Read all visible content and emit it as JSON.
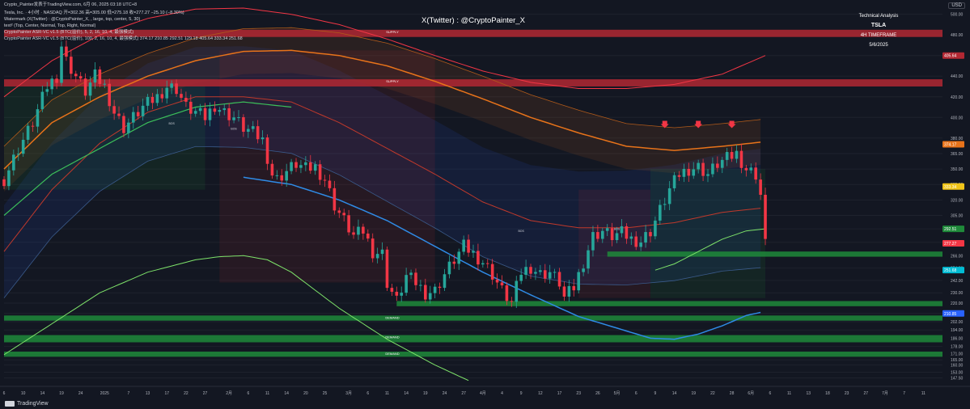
{
  "header": {
    "line1": "Crypto_Painter发表于TradingView.com, 6月 06, 2025 03:18 UTC+8",
    "line2": "Tesla, Inc. · 4小时 · NASDAQ  开=302.36  高=305.00  低=275.18  收=277.27  −25.10 (−8.30%)",
    "line3": "Watermark (X(Twitter) : @CryptoPainter_X, , large, top, center, 5, 30)",
    "line4": "text² (Top, Center, Normal, Top, Right, Normal)",
    "line5": "CryptoPainter ASR-VC v1.5 (BTC(溢价), 5, 2, 16, 10, 4, 最强模式)",
    "line6": "CryptoPainter ASR-VC v1.5 (BTC(溢价), 100, 2, 16, 10, 4, 最强模式)  374.17  210.85  292.51  129.18  405.64  333.34  251.68"
  },
  "watermark": "X(Twitter) : @CryptoPainter_X",
  "top_right": {
    "l1": "Technical Analysis",
    "l2": "TSLA",
    "l3": "4H TIMEFRAME",
    "l4": "5/6/2025"
  },
  "currency": "USD",
  "brand": "TradingView",
  "chart_data": {
    "type": "candlestick",
    "ylim": [
      144,
      506
    ],
    "y_ticks": [
      147.5,
      153.0,
      160.0,
      165.0,
      171.0,
      178.0,
      186.0,
      194.0,
      202.0,
      210.0,
      220.0,
      230.0,
      242.0,
      254.0,
      266.0,
      279.0,
      292.0,
      305.0,
      320.0,
      335.0,
      350.0,
      365.0,
      380.0,
      400.0,
      420.0,
      440.0,
      460.0,
      480.0,
      500.0
    ],
    "x_ticks": [
      {
        "i": 0,
        "label": "6"
      },
      {
        "i": 4,
        "label": "10"
      },
      {
        "i": 8,
        "label": "14"
      },
      {
        "i": 12,
        "label": "19"
      },
      {
        "i": 16,
        "label": "24"
      },
      {
        "i": 21,
        "label": "2025"
      },
      {
        "i": 26,
        "label": "7"
      },
      {
        "i": 30,
        "label": "13"
      },
      {
        "i": 34,
        "label": "17"
      },
      {
        "i": 38,
        "label": "22"
      },
      {
        "i": 42,
        "label": "27"
      },
      {
        "i": 47,
        "label": "2月"
      },
      {
        "i": 51,
        "label": "6"
      },
      {
        "i": 55,
        "label": "11"
      },
      {
        "i": 59,
        "label": "14"
      },
      {
        "i": 63,
        "label": "20"
      },
      {
        "i": 67,
        "label": "25"
      },
      {
        "i": 72,
        "label": "3月"
      },
      {
        "i": 76,
        "label": "6"
      },
      {
        "i": 80,
        "label": "11"
      },
      {
        "i": 84,
        "label": "14"
      },
      {
        "i": 88,
        "label": "19"
      },
      {
        "i": 92,
        "label": "24"
      },
      {
        "i": 96,
        "label": "27"
      },
      {
        "i": 100,
        "label": "4月"
      },
      {
        "i": 104,
        "label": "4"
      },
      {
        "i": 108,
        "label": "9"
      },
      {
        "i": 112,
        "label": "12"
      },
      {
        "i": 116,
        "label": "17"
      },
      {
        "i": 120,
        "label": "23"
      },
      {
        "i": 124,
        "label": "26"
      },
      {
        "i": 128,
        "label": "5月"
      },
      {
        "i": 132,
        "label": "6"
      },
      {
        "i": 136,
        "label": "9"
      },
      {
        "i": 140,
        "label": "14"
      },
      {
        "i": 144,
        "label": "19"
      },
      {
        "i": 148,
        "label": "22"
      },
      {
        "i": 152,
        "label": "28"
      },
      {
        "i": 156,
        "label": "6月"
      },
      {
        "i": 160,
        "label": "6"
      },
      {
        "i": 164,
        "label": "11"
      },
      {
        "i": 168,
        "label": "13"
      },
      {
        "i": 172,
        "label": "18"
      },
      {
        "i": 176,
        "label": "23"
      },
      {
        "i": 180,
        "label": "27"
      },
      {
        "i": 184,
        "label": "7月"
      },
      {
        "i": 188,
        "label": "7"
      },
      {
        "i": 192,
        "label": "11"
      },
      {
        "i": 196,
        "label": "16"
      }
    ],
    "x_count": 197,
    "close_path": [
      [
        0,
        340
      ],
      [
        3,
        370
      ],
      [
        6,
        395
      ],
      [
        9,
        430
      ],
      [
        11,
        440
      ],
      [
        12,
        470
      ],
      [
        13,
        455
      ],
      [
        15,
        440
      ],
      [
        17,
        425
      ],
      [
        19,
        440
      ],
      [
        21,
        430
      ],
      [
        23,
        405
      ],
      [
        25,
        390
      ],
      [
        27,
        400
      ],
      [
        29,
        410
      ],
      [
        32,
        420
      ],
      [
        34,
        430
      ],
      [
        36,
        428
      ],
      [
        38,
        410
      ],
      [
        40,
        405
      ],
      [
        42,
        400
      ],
      [
        44,
        412
      ],
      [
        46,
        405
      ],
      [
        48,
        400
      ],
      [
        50,
        390
      ],
      [
        52,
        385
      ],
      [
        54,
        378
      ],
      [
        56,
        345
      ],
      [
        57,
        340
      ],
      [
        59,
        348
      ],
      [
        61,
        355
      ],
      [
        63,
        350
      ],
      [
        65,
        352
      ],
      [
        67,
        340
      ],
      [
        69,
        315
      ],
      [
        71,
        300
      ],
      [
        73,
        285
      ],
      [
        75,
        290
      ],
      [
        77,
        270
      ],
      [
        79,
        268
      ],
      [
        80,
        240
      ],
      [
        82,
        222
      ],
      [
        84,
        246
      ],
      [
        86,
        240
      ],
      [
        88,
        230
      ],
      [
        90,
        232
      ],
      [
        92,
        248
      ],
      [
        94,
        262
      ],
      [
        96,
        275
      ],
      [
        98,
        268
      ],
      [
        100,
        260
      ],
      [
        102,
        248
      ],
      [
        104,
        232
      ],
      [
        106,
        220
      ],
      [
        108,
        250
      ],
      [
        110,
        255
      ],
      [
        112,
        248
      ],
      [
        114,
        250
      ],
      [
        116,
        240
      ],
      [
        117,
        225
      ],
      [
        119,
        235
      ],
      [
        121,
        260
      ],
      [
        123,
        285
      ],
      [
        125,
        290
      ],
      [
        127,
        285
      ],
      [
        129,
        288
      ],
      [
        131,
        282
      ],
      [
        133,
        280
      ],
      [
        135,
        290
      ],
      [
        137,
        310
      ],
      [
        139,
        330
      ],
      [
        141,
        345
      ],
      [
        143,
        350
      ],
      [
        145,
        352
      ],
      [
        147,
        345
      ],
      [
        149,
        355
      ],
      [
        151,
        360
      ],
      [
        153,
        365
      ],
      [
        155,
        350
      ],
      [
        157,
        345
      ],
      [
        158,
        325
      ],
      [
        159,
        277
      ]
    ],
    "bands_center": [
      [
        0,
        270
      ],
      [
        10,
        330
      ],
      [
        20,
        375
      ],
      [
        30,
        405
      ],
      [
        40,
        420
      ],
      [
        50,
        420
      ],
      [
        60,
        415
      ],
      [
        70,
        395
      ],
      [
        80,
        370
      ],
      [
        90,
        345
      ],
      [
        100,
        318
      ],
      [
        110,
        300
      ],
      [
        120,
        293
      ],
      [
        130,
        293
      ],
      [
        140,
        298
      ],
      [
        150,
        308
      ],
      [
        158,
        312
      ]
    ],
    "orange_line": [
      [
        0,
        350
      ],
      [
        10,
        395
      ],
      [
        20,
        420
      ],
      [
        30,
        440
      ],
      [
        40,
        455
      ],
      [
        50,
        464
      ],
      [
        60,
        465
      ],
      [
        70,
        460
      ],
      [
        80,
        450
      ],
      [
        90,
        435
      ],
      [
        100,
        418
      ],
      [
        110,
        400
      ],
      [
        120,
        385
      ],
      [
        130,
        372
      ],
      [
        140,
        368
      ],
      [
        150,
        372
      ],
      [
        158,
        376
      ]
    ],
    "green_line": [
      [
        0,
        305
      ],
      [
        10,
        345
      ],
      [
        20,
        370
      ],
      [
        30,
        395
      ],
      [
        40,
        410
      ],
      [
        50,
        415
      ],
      [
        60,
        410
      ]
    ],
    "blue_line": [
      [
        50,
        342
      ],
      [
        60,
        335
      ],
      [
        70,
        320
      ],
      [
        80,
        300
      ],
      [
        90,
        275
      ],
      [
        100,
        250
      ],
      [
        110,
        228
      ],
      [
        120,
        207
      ],
      [
        130,
        193
      ],
      [
        135,
        186
      ],
      [
        140,
        185
      ],
      [
        145,
        190
      ],
      [
        150,
        198
      ],
      [
        155,
        208
      ],
      [
        158,
        211
      ]
    ],
    "lime_line": [
      [
        0,
        170
      ],
      [
        10,
        200
      ],
      [
        20,
        230
      ],
      [
        30,
        250
      ],
      [
        40,
        262
      ],
      [
        45,
        265
      ],
      [
        50,
        266
      ],
      [
        55,
        262
      ],
      [
        60,
        250
      ],
      [
        70,
        215
      ],
      [
        80,
        185
      ],
      [
        90,
        160
      ],
      [
        97,
        145
      ]
    ],
    "lime_line2": [
      [
        136,
        252
      ],
      [
        140,
        258
      ],
      [
        145,
        270
      ],
      [
        150,
        282
      ],
      [
        155,
        290
      ],
      [
        159,
        292
      ]
    ],
    "red_line": [
      [
        0,
        420
      ],
      [
        10,
        455
      ],
      [
        20,
        480
      ],
      [
        30,
        496
      ],
      [
        40,
        505
      ],
      [
        50,
        506
      ],
      [
        60,
        500
      ],
      [
        70,
        490
      ],
      [
        80,
        476
      ],
      [
        90,
        460
      ],
      [
        100,
        445
      ],
      [
        110,
        434
      ],
      [
        120,
        428
      ],
      [
        130,
        428
      ],
      [
        140,
        432
      ],
      [
        150,
        442
      ],
      [
        159,
        460
      ]
    ],
    "zones": [
      {
        "label": "SUPPLY",
        "y0": 478,
        "y1": 485,
        "x0": 0,
        "x1": 196,
        "color": "#b22833"
      },
      {
        "label": "SUPPLY",
        "y0": 430,
        "y1": 437,
        "x0": 0,
        "x1": 196,
        "color": "#b22833"
      },
      {
        "label": "",
        "y0": 265,
        "y1": 270,
        "x0": 126,
        "x1": 196,
        "color": "#1f8a3a"
      },
      {
        "label": "",
        "y0": 217,
        "y1": 222,
        "x0": 82,
        "x1": 196,
        "color": "#1f8a3a"
      },
      {
        "label": "DEMAND",
        "y0": 203,
        "y1": 208,
        "x0": 0,
        "x1": 196,
        "color": "#1f8a3a"
      },
      {
        "label": "DEMAND",
        "y0": 182,
        "y1": 189,
        "x0": 0,
        "x1": 196,
        "color": "#1f8a3a"
      },
      {
        "label": "DEMAND",
        "y0": 168,
        "y1": 173,
        "x0": 0,
        "x1": 196,
        "color": "#1f8a3a"
      }
    ],
    "annotations": [
      {
        "label": "BOS",
        "x": 35,
        "y": 393
      },
      {
        "label": "BOS",
        "x": 48,
        "y": 388
      },
      {
        "label": "BOS",
        "x": 108,
        "y": 289
      },
      {
        "label": "BOS",
        "x": 128,
        "y": 291
      }
    ],
    "arrows_down": [
      138,
      145,
      152
    ],
    "price_labels": [
      {
        "value": "405.64",
        "color": "#b22833"
      },
      {
        "value": "374.17",
        "color": "#e8731a"
      },
      {
        "value": "333.34",
        "color": "#f0c419"
      },
      {
        "value": "292.51",
        "color": "#1f8a3a"
      },
      {
        "value": "277.27",
        "color": "#f23645"
      },
      {
        "value": "251.68",
        "color": "#00bcd4"
      },
      {
        "value": "210.85",
        "color": "#2962ff"
      }
    ]
  }
}
